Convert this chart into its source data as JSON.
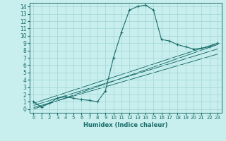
{
  "xlabel": "Humidex (Indice chaleur)",
  "bg_color": "#c8eeee",
  "grid_color": "#a8d8d8",
  "line_color": "#1a6e6a",
  "xlim": [
    -0.5,
    23.5
  ],
  "ylim": [
    -0.5,
    14.5
  ],
  "xticks": [
    0,
    1,
    2,
    3,
    4,
    5,
    6,
    7,
    8,
    9,
    10,
    11,
    12,
    13,
    14,
    15,
    16,
    17,
    18,
    19,
    20,
    21,
    22,
    23
  ],
  "yticks": [
    0,
    1,
    2,
    3,
    4,
    5,
    6,
    7,
    8,
    9,
    10,
    11,
    12,
    13,
    14
  ],
  "main_line_x": [
    0,
    1,
    2,
    3,
    4,
    5,
    6,
    7,
    8,
    9,
    10,
    11,
    12,
    13,
    14,
    15,
    16,
    17,
    18,
    19,
    20,
    21,
    22,
    23
  ],
  "main_line_y": [
    1.0,
    0.3,
    0.8,
    1.5,
    1.7,
    1.5,
    1.3,
    1.2,
    1.0,
    2.5,
    7.0,
    10.5,
    13.5,
    14.0,
    14.2,
    13.5,
    9.5,
    9.3,
    8.8,
    8.5,
    8.2,
    8.3,
    8.5,
    9.0
  ],
  "reg_lines": [
    {
      "x": [
        0,
        23
      ],
      "y": [
        0.8,
        9.0
      ]
    },
    {
      "x": [
        0,
        23
      ],
      "y": [
        0.5,
        8.2
      ]
    },
    {
      "x": [
        0,
        23
      ],
      "y": [
        0.2,
        7.5
      ]
    },
    {
      "x": [
        0,
        23
      ],
      "y": [
        0.0,
        8.8
      ]
    }
  ],
  "xlabel_fontsize": 6.0,
  "tick_fontsize_x": 5.0,
  "tick_fontsize_y": 5.5
}
